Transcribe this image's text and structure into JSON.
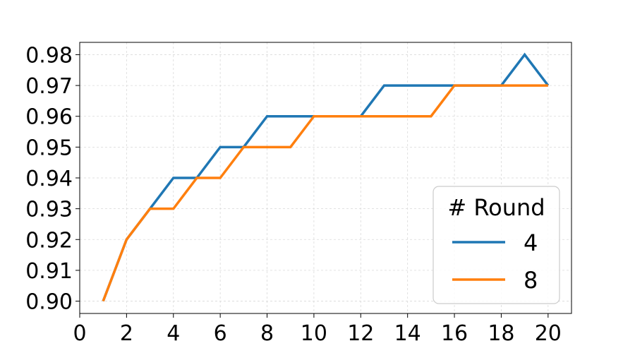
{
  "chart_data": {
    "type": "line",
    "x": [
      1,
      2,
      3,
      4,
      5,
      6,
      7,
      8,
      9,
      10,
      11,
      12,
      13,
      14,
      15,
      16,
      17,
      18,
      19,
      20
    ],
    "series": [
      {
        "name": "4",
        "color": "#1f77b4",
        "values": [
          0.9,
          0.92,
          0.93,
          0.94,
          0.94,
          0.95,
          0.95,
          0.96,
          0.96,
          0.96,
          0.96,
          0.96,
          0.97,
          0.97,
          0.97,
          0.97,
          0.97,
          0.97,
          0.98,
          0.97
        ]
      },
      {
        "name": "8",
        "color": "#ff7f0e",
        "values": [
          0.9,
          0.92,
          0.93,
          0.93,
          0.94,
          0.94,
          0.95,
          0.95,
          0.95,
          0.96,
          0.96,
          0.96,
          0.96,
          0.96,
          0.96,
          0.97,
          0.97,
          0.97,
          0.97,
          0.97
        ]
      }
    ],
    "xlim": [
      0,
      21
    ],
    "ylim": [
      0.896,
      0.984
    ],
    "xticks": [
      0,
      2,
      4,
      6,
      8,
      10,
      12,
      14,
      16,
      18,
      20
    ],
    "xtick_labels": [
      "0",
      "2",
      "4",
      "6",
      "8",
      "10",
      "12",
      "14",
      "16",
      "18",
      "20"
    ],
    "yticks": [
      0.9,
      0.91,
      0.92,
      0.93,
      0.94,
      0.95,
      0.96,
      0.97,
      0.98
    ],
    "ytick_labels": [
      "0.90",
      "0.91",
      "0.92",
      "0.93",
      "0.94",
      "0.95",
      "0.96",
      "0.97",
      "0.98"
    ],
    "grid": true,
    "legend": {
      "title": "# Round",
      "placement": "lower-right"
    }
  }
}
